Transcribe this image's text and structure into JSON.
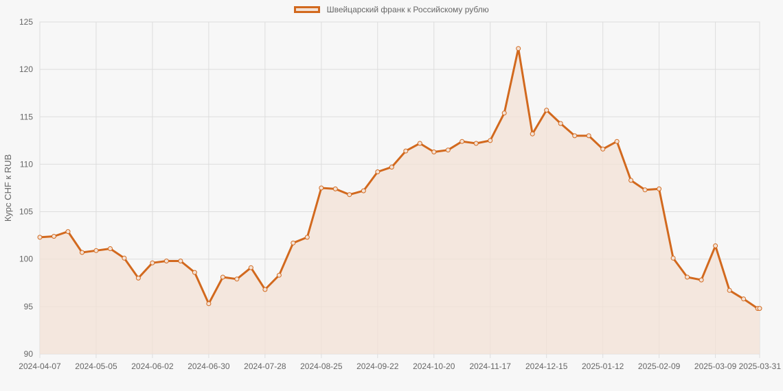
{
  "chart_data": {
    "type": "line",
    "title": "",
    "xlabel": "",
    "ylabel": "Курс CHF к RUB",
    "ylim": [
      90,
      125
    ],
    "yticks": [
      90,
      95,
      100,
      105,
      110,
      115,
      120,
      125
    ],
    "grid": true,
    "legend_position": "top-center",
    "colors": {
      "line": "#d2691e",
      "fill": "#f3e2d6",
      "grid": "#dddddd",
      "background": "#f7f7f7",
      "text": "#666666"
    },
    "x_tick_labels": [
      "2024-04-07",
      "2024-05-05",
      "2024-06-02",
      "2024-06-30",
      "2024-07-28",
      "2024-08-25",
      "2024-09-22",
      "2024-10-20",
      "2024-11-17",
      "2024-12-15",
      "2025-01-12",
      "2025-02-09",
      "2025-03-09",
      "2025-03-31"
    ],
    "series": [
      {
        "name": "Швейцарский франк к Российскому рублю",
        "x": [
          "2024-04-07",
          "2024-04-14",
          "2024-04-21",
          "2024-04-28",
          "2024-05-05",
          "2024-05-12",
          "2024-05-19",
          "2024-05-26",
          "2024-06-02",
          "2024-06-09",
          "2024-06-16",
          "2024-06-23",
          "2024-06-30",
          "2024-07-07",
          "2024-07-14",
          "2024-07-21",
          "2024-07-28",
          "2024-08-04",
          "2024-08-11",
          "2024-08-18",
          "2024-08-25",
          "2024-09-01",
          "2024-09-08",
          "2024-09-15",
          "2024-09-22",
          "2024-09-29",
          "2024-10-06",
          "2024-10-13",
          "2024-10-20",
          "2024-10-27",
          "2024-11-03",
          "2024-11-10",
          "2024-11-17",
          "2024-11-24",
          "2024-12-01",
          "2024-12-08",
          "2024-12-15",
          "2024-12-22",
          "2024-12-29",
          "2025-01-05",
          "2025-01-12",
          "2025-01-19",
          "2025-01-26",
          "2025-02-02",
          "2025-02-09",
          "2025-02-16",
          "2025-02-23",
          "2025-03-02",
          "2025-03-09",
          "2025-03-16",
          "2025-03-23",
          "2025-03-30",
          "2025-03-31"
        ],
        "values": [
          102.3,
          102.4,
          102.9,
          100.7,
          100.9,
          101.1,
          100.1,
          98.0,
          99.6,
          99.8,
          99.8,
          98.6,
          95.3,
          98.1,
          97.9,
          99.1,
          96.8,
          98.3,
          101.7,
          102.3,
          107.5,
          107.4,
          106.8,
          107.2,
          109.2,
          109.7,
          111.4,
          112.2,
          111.3,
          111.5,
          112.4,
          112.2,
          112.5,
          115.4,
          122.2,
          113.2,
          115.7,
          114.3,
          113.0,
          113.0,
          111.6,
          112.4,
          108.3,
          107.3,
          107.4,
          100.1,
          98.1,
          97.8,
          101.4,
          96.7,
          95.8,
          94.8,
          94.8
        ]
      }
    ]
  }
}
